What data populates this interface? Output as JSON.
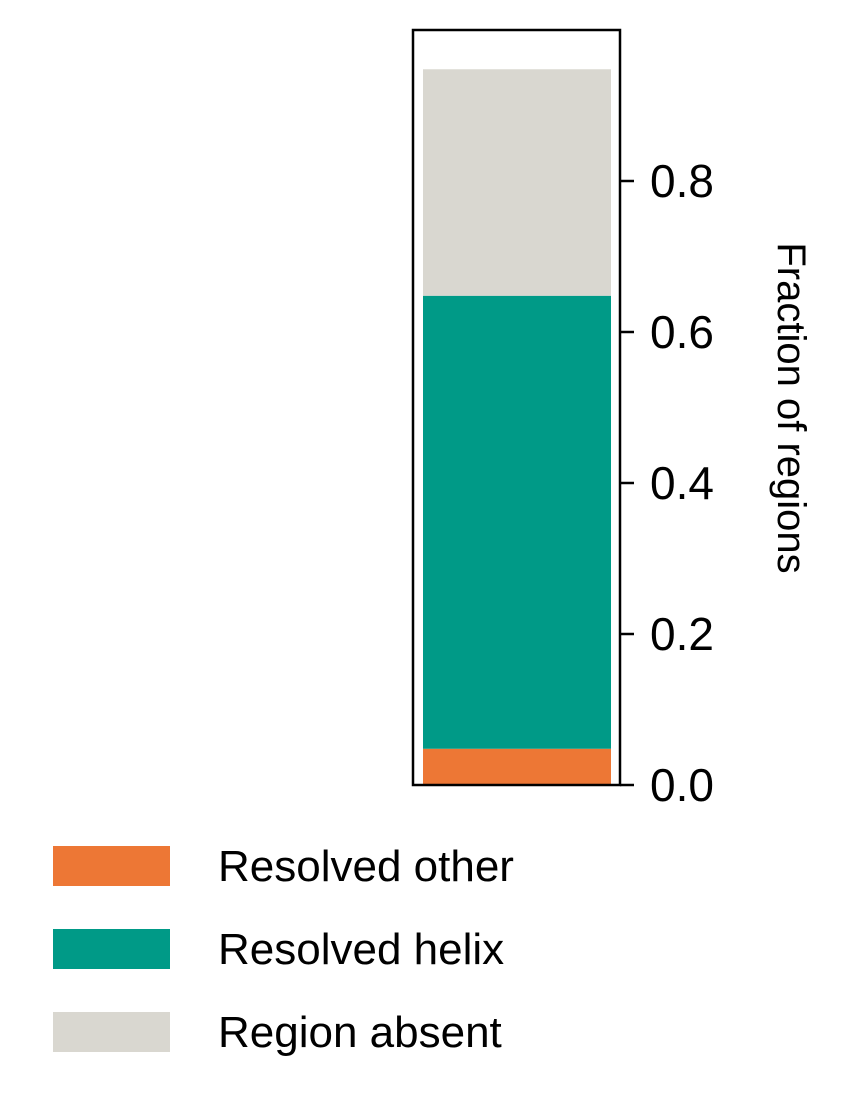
{
  "chart_data": {
    "type": "bar",
    "stacked": true,
    "categories": [
      ""
    ],
    "series": [
      {
        "name": "Resolved other",
        "values": [
          0.048
        ],
        "color": "#ED7735"
      },
      {
        "name": "Resolved helix",
        "values": [
          0.6
        ],
        "color": "#009A87"
      },
      {
        "name": "Region absent",
        "values": [
          0.3
        ],
        "color": "#D9D7D0"
      }
    ],
    "title": "",
    "xlabel": "",
    "ylabel": "Fraction of regions",
    "ylim": [
      0,
      1.0
    ],
    "yticks": [
      "0.0",
      "0.2",
      "0.4",
      "0.6",
      "0.8"
    ],
    "yaxis_side": "right",
    "legend_position": "bottom-left",
    "grid": false
  }
}
